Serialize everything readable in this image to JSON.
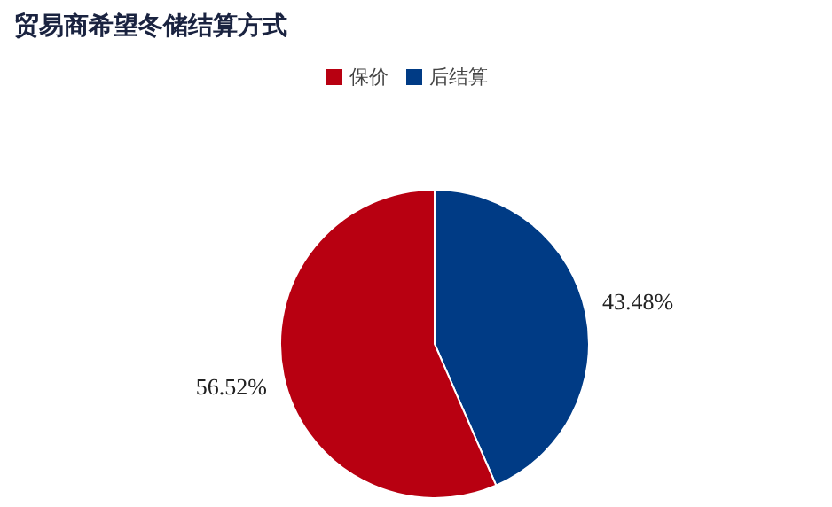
{
  "chart_data": {
    "type": "pie",
    "title": "贸易商希望冬储结算方式",
    "categories": [
      "后结算",
      "保价"
    ],
    "values": [
      43.48,
      56.52
    ],
    "colors": [
      "#003b85",
      "#b80011"
    ],
    "value_labels": [
      "43.48%",
      "56.52%"
    ],
    "legend": "top"
  }
}
